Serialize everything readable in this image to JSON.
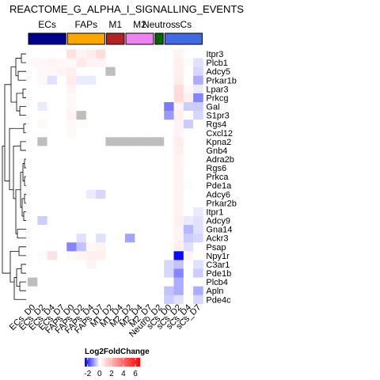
{
  "chart_data": {
    "type": "heatmap",
    "title": "REACTOME_G_ALPHA_I_SIGNALLING_EVENTS",
    "groups": [
      {
        "label": "ECs",
        "color": "#00008B",
        "span": [
          0,
          3
        ]
      },
      {
        "label": "FAPs",
        "color": "#FFA500",
        "span": [
          4,
          7
        ]
      },
      {
        "label": "M1",
        "color": "#B22222",
        "span": [
          8,
          9
        ]
      },
      {
        "label": "M2",
        "color": "#EE82EE",
        "span": [
          10,
          12
        ]
      },
      {
        "label": "Neutros",
        "color": "#006400",
        "span": [
          13,
          13
        ]
      },
      {
        "label": "sCs",
        "color": "#4169E1",
        "span": [
          14,
          17
        ]
      }
    ],
    "columns": [
      "ECs_D0",
      "ECs_D2",
      "ECs_D4",
      "ECs_D7",
      "FAPs_D0",
      "FAPs_D2",
      "FAPs_D4",
      "FAPs_D7",
      "M1_D2",
      "M1_D4",
      "M2_D2",
      "M2_D4",
      "M2_D7",
      "Neutro_D2",
      "sCs_D0",
      "sCs_D2",
      "sCs_D4",
      "sCs_D7"
    ],
    "rows": [
      "Itpr3",
      "Plcb1",
      "Adcy5",
      "Prkar1b",
      "Lpar3",
      "Prkcg",
      "Gal",
      "S1pr3",
      "Rgs4",
      "Cxcl12",
      "Kpna2",
      "Gnb4",
      "Adra2b",
      "Rgs6",
      "Prkca",
      "Pde1a",
      "Adcy6",
      "Prkar2b",
      "Itpr1",
      "Adcy9",
      "Gna14",
      "Ackr3",
      "Psap",
      "Npy1r",
      "C3ar1",
      "Pde1b",
      "Plcb4",
      "Apln",
      "Pde4c"
    ],
    "values": [
      [
        0,
        0,
        0,
        0,
        0.8,
        0.3,
        0.5,
        0.9,
        0,
        0,
        0,
        0,
        0,
        0,
        0,
        0.3,
        0,
        0
      ],
      [
        0.2,
        0.2,
        0.3,
        0.2,
        0.2,
        0.6,
        0.3,
        0.3,
        0,
        0,
        0,
        0,
        0,
        0,
        0,
        0.4,
        0.1,
        -0.3
      ],
      [
        0,
        0.2,
        0.2,
        0.3,
        0.4,
        0,
        0,
        0,
        null,
        0,
        0,
        0,
        0,
        0,
        0,
        0.4,
        0,
        -0.4
      ],
      [
        0,
        0.2,
        -0.3,
        0,
        0.5,
        -0.2,
        -0.2,
        0,
        0,
        0,
        0,
        0,
        0,
        0,
        0,
        0.5,
        0,
        -0.8
      ],
      [
        0,
        0,
        0,
        0,
        0.3,
        0,
        0,
        0,
        0,
        0,
        0,
        0,
        0,
        0,
        0,
        0.9,
        0.2,
        -0.2
      ],
      [
        0,
        0,
        0,
        0,
        0.2,
        0,
        0,
        0,
        0,
        0,
        0,
        0,
        0,
        0,
        0,
        1.0,
        0.4,
        -1.2
      ],
      [
        0,
        -0.2,
        0,
        0,
        0.2,
        0,
        0,
        0,
        0,
        0,
        0,
        0,
        0,
        0,
        -1.3,
        0.3,
        -0.5,
        -0.5
      ],
      [
        0,
        0,
        0,
        0,
        0.3,
        null,
        0,
        0,
        0,
        0,
        0,
        0,
        0,
        0,
        -1.0,
        0.4,
        0,
        -0.4
      ],
      [
        0,
        0.2,
        0,
        0,
        0.2,
        0.1,
        0,
        0,
        0,
        0,
        0,
        0,
        0,
        0,
        0,
        0.3,
        -0.5,
        0
      ],
      [
        0,
        0,
        0,
        0,
        0.2,
        0,
        0,
        0,
        0,
        0,
        0,
        0,
        0,
        0,
        0,
        0.3,
        0,
        0
      ],
      [
        0,
        null,
        0,
        0,
        0,
        0,
        0,
        0,
        null,
        null,
        null,
        null,
        null,
        null,
        0,
        0.5,
        0,
        0
      ],
      [
        0,
        0,
        0,
        0,
        0,
        0,
        0,
        0,
        0,
        0,
        0,
        0,
        0,
        0,
        0,
        0.4,
        0,
        0
      ],
      [
        0,
        0,
        0,
        0,
        0,
        0,
        0,
        0,
        0,
        0,
        0,
        0,
        0,
        0,
        0,
        0.3,
        0,
        0
      ],
      [
        0,
        0,
        0,
        0,
        0,
        0,
        0,
        0,
        0,
        0,
        0,
        0,
        0,
        0,
        0,
        0.3,
        0,
        0
      ],
      [
        0,
        0,
        0,
        0,
        0,
        0,
        0,
        0,
        0,
        0,
        0,
        0,
        0,
        0,
        0,
        0.3,
        0,
        0
      ],
      [
        0,
        0,
        0,
        0,
        0,
        0,
        0,
        0,
        0,
        0,
        0,
        0,
        0,
        0,
        0,
        0.3,
        0.1,
        0
      ],
      [
        0,
        0,
        0,
        0,
        0,
        0,
        -0.2,
        -0.4,
        0,
        0,
        0,
        0,
        0,
        0,
        0,
        0.3,
        0,
        0
      ],
      [
        0,
        0,
        0,
        0,
        0,
        0,
        0,
        0,
        0,
        0,
        0,
        0,
        0,
        0,
        0,
        0.3,
        0,
        0
      ],
      [
        0,
        0,
        0,
        0,
        0,
        0,
        0,
        0,
        0,
        0,
        0,
        0,
        0,
        0,
        0,
        0.3,
        0,
        -0.2
      ],
      [
        0,
        -0.5,
        0,
        0,
        0,
        0,
        0,
        0,
        0,
        0,
        0,
        0,
        0,
        0,
        0,
        0.4,
        -0.2,
        -0.3
      ],
      [
        0,
        0,
        0,
        0,
        0,
        0,
        0,
        0,
        0,
        0,
        0,
        0,
        0,
        0,
        0,
        0.3,
        -0.7,
        -0.3
      ],
      [
        0,
        0,
        0,
        0,
        0,
        -0.3,
        0,
        -0.3,
        0,
        0,
        -0.9,
        0,
        0,
        0,
        0,
        0.3,
        -0.5,
        -0.4
      ],
      [
        0,
        0,
        0,
        0,
        -1.2,
        -0.6,
        0.2,
        0.3,
        0,
        0,
        0,
        0,
        0,
        0,
        0,
        0.4,
        -0.3,
        0
      ],
      [
        0,
        0.1,
        0.8,
        0,
        0.2,
        0.3,
        0.4,
        0.4,
        0,
        0,
        0,
        0,
        0,
        0,
        0,
        -2.4,
        0.3,
        0
      ],
      [
        0,
        0,
        0,
        0,
        0,
        0,
        0.3,
        0,
        0,
        0,
        0,
        0,
        0,
        0,
        -0.4,
        -0.6,
        0,
        -0.3
      ],
      [
        0,
        0,
        0,
        0,
        0,
        0,
        0,
        0,
        0,
        0,
        0,
        0,
        0,
        0,
        -0.4,
        -1.2,
        0,
        -0.5
      ],
      [
        null,
        0,
        0,
        0,
        0,
        0,
        0,
        0,
        0,
        0,
        0,
        0,
        0,
        0,
        0,
        -0.8,
        0,
        0
      ],
      [
        0,
        0,
        0,
        0,
        0,
        0,
        0,
        0,
        0,
        0,
        0,
        0,
        0,
        0,
        -0.6,
        -0.8,
        0,
        -0.8
      ],
      [
        0,
        0,
        0,
        0,
        0,
        0,
        0,
        0,
        0,
        0,
        0,
        0,
        0,
        0,
        -0.5,
        -0.3,
        0,
        -0.4
      ]
    ],
    "na_color": "#BEBEBE",
    "legend": {
      "title": "Log2FoldChange",
      "ticks": [
        -2,
        0,
        2,
        4,
        6
      ],
      "range": [
        -2.5,
        6.8
      ],
      "colors": [
        "#0000FF",
        "#FFFFFF",
        "#FF0000"
      ]
    }
  }
}
